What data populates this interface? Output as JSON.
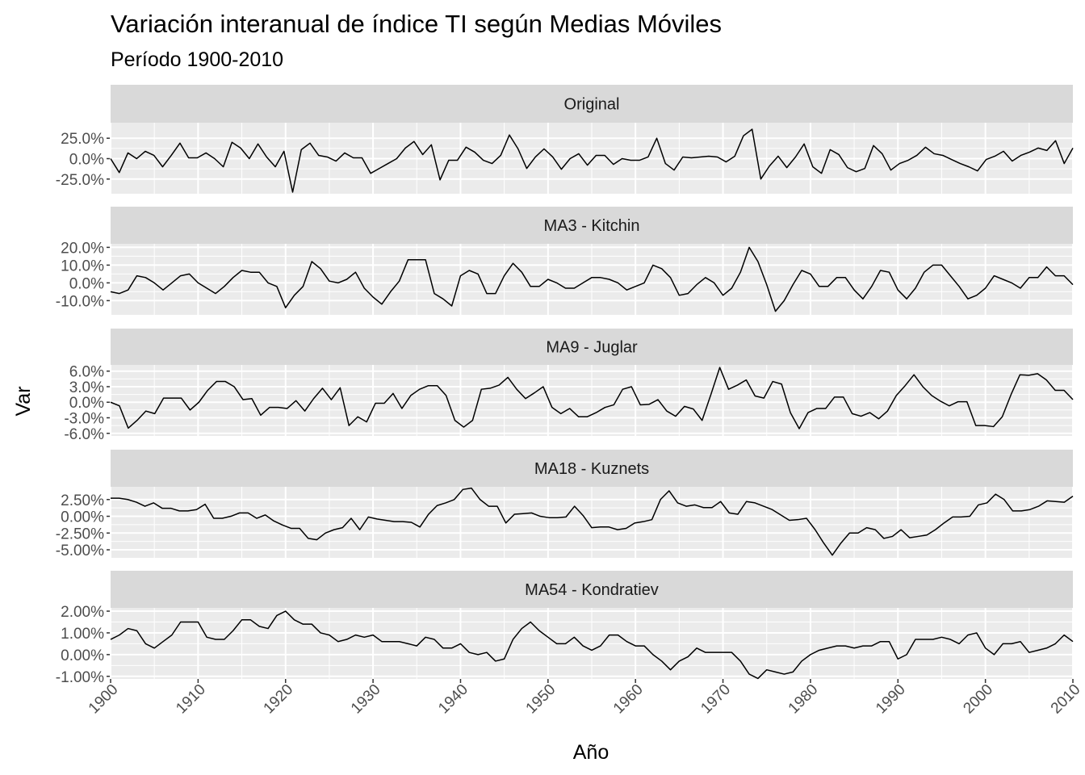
{
  "chart_data": {
    "type": "line",
    "title": "Variación interanual de índice TI según Medias Móviles",
    "subtitle": "Período 1900-2010",
    "xlabel": "Año",
    "ylabel": "Var",
    "x_start": 1900,
    "x_end": 2010,
    "xlim": [
      1900,
      2010
    ],
    "x_ticks": [
      1900,
      1910,
      1920,
      1930,
      1940,
      1950,
      1960,
      1970,
      1980,
      1990,
      2000,
      2010
    ],
    "panels": [
      {
        "strip": "Original",
        "ylim": [
          -0.43,
          0.44
        ],
        "y_ticks": [
          -0.25,
          0.0,
          0.25
        ],
        "y_tick_labels": [
          "-25.0%",
          "0.0%",
          "25.0%"
        ],
        "values": [
          0.0,
          -0.17,
          0.07,
          0.0,
          0.09,
          0.04,
          -0.1,
          0.04,
          0.19,
          0.01,
          0.01,
          0.07,
          0.0,
          -0.1,
          0.2,
          0.13,
          0.0,
          0.18,
          0.02,
          -0.1,
          0.09,
          -0.41,
          0.11,
          0.19,
          0.04,
          0.02,
          -0.03,
          0.07,
          0.01,
          0.01,
          -0.18,
          -0.12,
          -0.06,
          0.0,
          0.13,
          0.21,
          0.05,
          0.17,
          -0.26,
          -0.02,
          -0.02,
          0.14,
          0.08,
          -0.02,
          -0.06,
          0.04,
          0.29,
          0.12,
          -0.12,
          0.02,
          0.12,
          0.02,
          -0.13,
          0.0,
          0.06,
          -0.08,
          0.04,
          0.04,
          -0.07,
          0.0,
          -0.02,
          -0.02,
          0.02,
          0.25,
          -0.06,
          -0.14,
          0.02,
          0.01,
          0.02,
          0.03,
          0.02,
          -0.04,
          0.03,
          0.28,
          0.36,
          -0.25,
          -0.09,
          0.03,
          -0.11,
          0.02,
          0.18,
          -0.1,
          -0.18,
          0.11,
          0.05,
          -0.11,
          -0.16,
          -0.12,
          0.16,
          0.06,
          -0.14,
          -0.06,
          -0.02,
          0.04,
          0.14,
          0.06,
          0.04,
          -0.01,
          -0.06,
          -0.1,
          -0.15,
          -0.01,
          0.03,
          0.09,
          -0.03,
          0.04,
          0.08,
          0.13,
          0.1,
          0.22,
          -0.06,
          0.13
        ]
      },
      {
        "strip": "MA3 - Kitchin",
        "ylim": [
          -0.18,
          0.22
        ],
        "y_ticks": [
          -0.1,
          0.0,
          0.1,
          0.2
        ],
        "y_tick_labels": [
          "-10.0%",
          "0.0%",
          "10.0%",
          "20.0%"
        ],
        "values": [
          -0.05,
          -0.06,
          -0.04,
          0.04,
          0.03,
          0.0,
          -0.04,
          0.0,
          0.04,
          0.05,
          0.0,
          -0.03,
          -0.06,
          -0.02,
          0.03,
          0.07,
          0.06,
          0.06,
          0.0,
          -0.02,
          -0.14,
          -0.07,
          -0.02,
          0.12,
          0.08,
          0.01,
          0.0,
          0.02,
          0.06,
          -0.03,
          -0.08,
          -0.12,
          -0.05,
          0.01,
          0.13,
          0.13,
          0.13,
          -0.06,
          -0.09,
          -0.13,
          0.04,
          0.07,
          0.05,
          -0.06,
          -0.06,
          0.04,
          0.11,
          0.06,
          -0.02,
          -0.02,
          0.02,
          0.0,
          -0.03,
          -0.03,
          0.0,
          0.03,
          0.03,
          0.02,
          0.0,
          -0.04,
          -0.02,
          0.0,
          0.1,
          0.08,
          0.03,
          -0.07,
          -0.06,
          -0.01,
          0.03,
          0.0,
          -0.07,
          -0.03,
          0.06,
          0.2,
          0.12,
          -0.01,
          -0.16,
          -0.1,
          -0.01,
          0.07,
          0.05,
          -0.02,
          -0.02,
          0.03,
          0.03,
          -0.04,
          -0.09,
          -0.02,
          0.07,
          0.06,
          -0.04,
          -0.09,
          -0.03,
          0.06,
          0.1,
          0.1,
          0.04,
          -0.02,
          -0.09,
          -0.07,
          -0.03,
          0.04,
          0.02,
          0.0,
          -0.03,
          0.03,
          0.03,
          0.09,
          0.04,
          0.04,
          -0.01
        ]
      },
      {
        "strip": "MA9 - Juglar",
        "ylim": [
          -0.065,
          0.072
        ],
        "y_ticks": [
          -0.06,
          -0.03,
          0.0,
          0.03,
          0.06
        ],
        "y_tick_labels": [
          "-6.0%",
          "-3.0%",
          "0.0%",
          "3.0%",
          "6.0%"
        ],
        "values": [
          0.0,
          -0.007,
          -0.05,
          -0.035,
          -0.017,
          -0.022,
          0.008,
          0.008,
          0.008,
          -0.015,
          0.0,
          0.023,
          0.04,
          0.04,
          0.03,
          0.005,
          0.007,
          -0.025,
          -0.01,
          -0.01,
          -0.012,
          0.003,
          -0.017,
          0.007,
          0.027,
          0.005,
          0.028,
          -0.045,
          -0.028,
          -0.038,
          -0.002,
          -0.002,
          0.017,
          -0.012,
          0.013,
          0.025,
          0.032,
          0.032,
          0.013,
          -0.035,
          -0.048,
          -0.035,
          0.025,
          0.027,
          0.033,
          0.048,
          0.025,
          0.007,
          0.018,
          0.03,
          -0.01,
          -0.022,
          -0.012,
          -0.028,
          -0.028,
          -0.02,
          -0.01,
          -0.005,
          0.025,
          0.03,
          -0.005,
          -0.004,
          0.005,
          -0.017,
          -0.027,
          -0.008,
          -0.013,
          -0.035,
          0.015,
          0.067,
          0.025,
          0.033,
          0.043,
          0.012,
          0.008,
          0.04,
          0.035,
          -0.02,
          -0.051,
          -0.02,
          -0.012,
          -0.012,
          0.01,
          0.01,
          -0.022,
          -0.027,
          -0.02,
          -0.032,
          -0.017,
          0.013,
          0.032,
          0.053,
          0.03,
          0.013,
          0.002,
          -0.007,
          0.001,
          0.001,
          -0.045,
          -0.045,
          -0.047,
          -0.028,
          0.015,
          0.053,
          0.052,
          0.055,
          0.043,
          0.023,
          0.023,
          0.005
        ]
      },
      {
        "strip": "MA18 - Kuznets",
        "ylim": [
          -0.062,
          0.044
        ],
        "y_ticks": [
          -0.05,
          -0.025,
          0.0,
          0.025
        ],
        "y_tick_labels": [
          "-5.00%",
          "-2.50%",
          "0.00%",
          "2.50%"
        ],
        "values": [
          0.027,
          0.027,
          0.025,
          0.021,
          0.015,
          0.02,
          0.012,
          0.012,
          0.008,
          0.008,
          0.01,
          0.018,
          -0.003,
          -0.003,
          0.0,
          0.005,
          0.005,
          -0.003,
          0.002,
          -0.007,
          -0.013,
          -0.018,
          -0.018,
          -0.033,
          -0.035,
          -0.025,
          -0.02,
          -0.017,
          -0.003,
          -0.02,
          -0.001,
          -0.004,
          -0.006,
          -0.008,
          -0.008,
          -0.009,
          -0.016,
          0.003,
          0.016,
          0.02,
          0.025,
          0.04,
          0.042,
          0.025,
          0.015,
          0.015,
          -0.01,
          0.003,
          0.004,
          0.005,
          0.0,
          -0.002,
          -0.002,
          -0.001,
          0.015,
          0.001,
          -0.017,
          -0.016,
          -0.016,
          -0.02,
          -0.018,
          -0.01,
          -0.008,
          -0.005,
          0.025,
          0.038,
          0.02,
          0.015,
          0.017,
          0.013,
          0.013,
          0.022,
          0.005,
          0.003,
          0.022,
          0.02,
          0.015,
          0.01,
          0.002,
          -0.006,
          -0.005,
          -0.003,
          -0.02,
          -0.04,
          -0.058,
          -0.04,
          -0.025,
          -0.025,
          -0.017,
          -0.02,
          -0.033,
          -0.03,
          -0.02,
          -0.032,
          -0.03,
          -0.028,
          -0.02,
          -0.01,
          -0.001,
          -0.001,
          0.0,
          0.017,
          0.02,
          0.033,
          0.025,
          0.008,
          0.008,
          0.01,
          0.015,
          0.023,
          0.022,
          0.021,
          0.03
        ]
      },
      {
        "strip": "MA54 - Kondratiev",
        "ylim": [
          -0.0112,
          0.0215
        ],
        "y_ticks": [
          -0.01,
          0.0,
          0.01,
          0.02
        ],
        "y_tick_labels": [
          "-1.00%",
          "0.00%",
          "1.00%",
          "2.00%"
        ],
        "values": [
          0.007,
          0.009,
          0.012,
          0.011,
          0.005,
          0.003,
          0.006,
          0.009,
          0.015,
          0.015,
          0.015,
          0.008,
          0.007,
          0.007,
          0.011,
          0.016,
          0.016,
          0.013,
          0.012,
          0.018,
          0.02,
          0.016,
          0.014,
          0.014,
          0.01,
          0.009,
          0.006,
          0.007,
          0.009,
          0.008,
          0.009,
          0.006,
          0.006,
          0.006,
          0.005,
          0.004,
          0.008,
          0.007,
          0.003,
          0.003,
          0.005,
          0.001,
          0.0,
          0.001,
          -0.003,
          -0.002,
          0.007,
          0.012,
          0.015,
          0.011,
          0.008,
          0.005,
          0.005,
          0.008,
          0.004,
          0.002,
          0.004,
          0.009,
          0.009,
          0.006,
          0.004,
          0.004,
          0.0,
          -0.003,
          -0.007,
          -0.003,
          -0.001,
          0.003,
          0.001,
          0.001,
          0.001,
          0.001,
          -0.003,
          -0.009,
          -0.011,
          -0.007,
          -0.008,
          -0.009,
          -0.008,
          -0.003,
          0.0,
          0.002,
          0.003,
          0.004,
          0.004,
          0.003,
          0.004,
          0.004,
          0.006,
          0.006,
          -0.002,
          0.0,
          0.007,
          0.007,
          0.007,
          0.008,
          0.007,
          0.005,
          0.009,
          0.01,
          0.003,
          0.0,
          0.005,
          0.005,
          0.006,
          0.001,
          0.002,
          0.003,
          0.005,
          0.009,
          0.006
        ]
      }
    ]
  }
}
